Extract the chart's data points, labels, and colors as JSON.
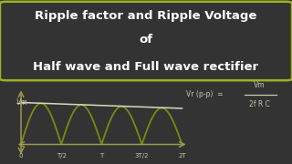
{
  "bg_color": "#333333",
  "title_border_color": "#a0b020",
  "title_line1": "Ripple factor and Ripple Voltage",
  "title_line2": "of",
  "title_line3": "Half wave and Full wave rectifier",
  "title_color": "#ffffff",
  "wave_color": "#7a8a10",
  "envelope_color": "#d8d8c0",
  "axis_color": "#9a9a50",
  "text_color": "#c8c8b0",
  "vm_label": "Vm",
  "x_labels": [
    "0",
    "T/2",
    "T",
    "3T/2",
    "2T"
  ],
  "title_fontsize": 9.5,
  "wave_lw": 1.3,
  "envelope_lw": 1.1,
  "axis_lw": 1.1
}
